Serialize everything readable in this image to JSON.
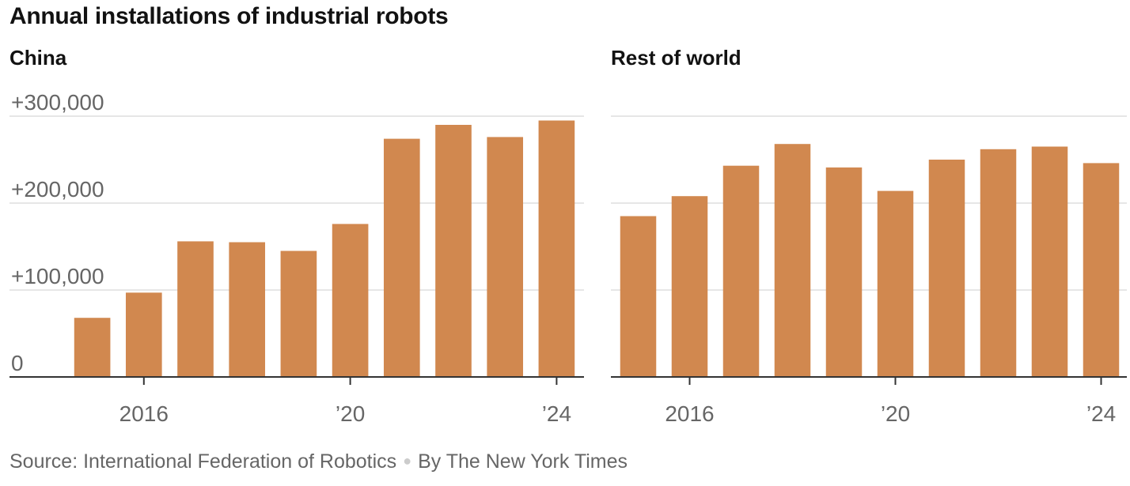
{
  "title": "Annual installations of industrial robots",
  "colors": {
    "bar": "#D1884F",
    "grid": "#e6e6e6",
    "axis": "#333333",
    "text": "#666666"
  },
  "footer": {
    "source": "Source: International Federation of Robotics",
    "byline": "By The New York Times"
  },
  "chart_data": [
    {
      "type": "bar",
      "title": "China",
      "categories": [
        "2015",
        "2016",
        "2017",
        "2018",
        "2019",
        "2020",
        "2021",
        "2022",
        "2023",
        "2024"
      ],
      "values": [
        68000,
        97000,
        156000,
        155000,
        145000,
        176000,
        274000,
        290000,
        276000,
        295000
      ],
      "ylim": [
        0,
        300000
      ],
      "yticks": [
        {
          "value": 0,
          "label": "0"
        },
        {
          "value": 100000,
          "label": "+100,000"
        },
        {
          "value": 200000,
          "label": "+200,000"
        },
        {
          "value": 300000,
          "label": "+300,000"
        }
      ],
      "xticks": [
        {
          "category": "2016",
          "label": "2016"
        },
        {
          "category": "2020",
          "label": "’20"
        },
        {
          "category": "2024",
          "label": "’24"
        }
      ],
      "grid": true
    },
    {
      "type": "bar",
      "title": "Rest of world",
      "categories": [
        "2015",
        "2016",
        "2017",
        "2018",
        "2019",
        "2020",
        "2021",
        "2022",
        "2023",
        "2024"
      ],
      "values": [
        185000,
        208000,
        243000,
        268000,
        241000,
        214000,
        250000,
        262000,
        265000,
        246000
      ],
      "ylim": [
        0,
        300000
      ],
      "yticks": [
        {
          "value": 0,
          "label": ""
        },
        {
          "value": 100000,
          "label": ""
        },
        {
          "value": 200000,
          "label": ""
        },
        {
          "value": 300000,
          "label": ""
        }
      ],
      "xticks": [
        {
          "category": "2016",
          "label": "2016"
        },
        {
          "category": "2020",
          "label": "’20"
        },
        {
          "category": "2024",
          "label": "’24"
        }
      ],
      "grid": true
    }
  ]
}
